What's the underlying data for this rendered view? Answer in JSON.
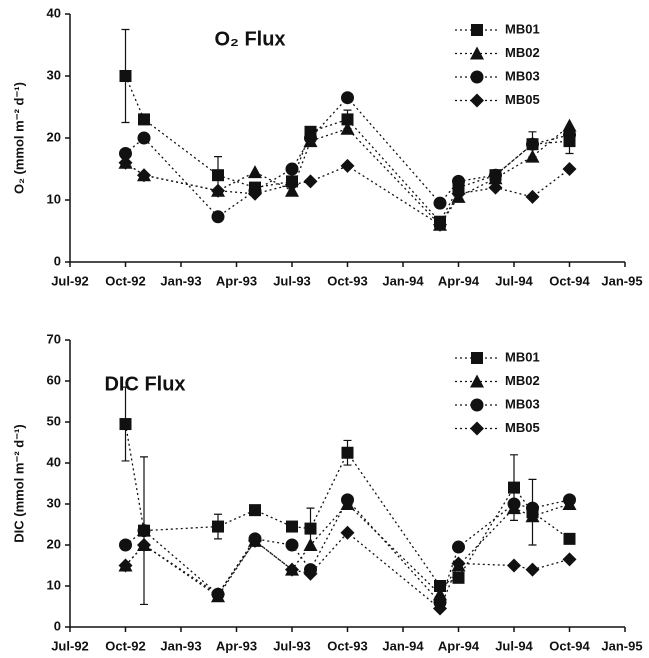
{
  "chart_data": [
    {
      "type": "line",
      "title": "O₂ Flux",
      "y_label": "O₂ (mmol m⁻² d⁻¹)",
      "x": [
        "1992-10",
        "1992-11",
        "1993-03",
        "1993-05",
        "1993-07",
        "1993-08",
        "1993-10",
        "1994-03",
        "1994-04",
        "1994-06",
        "1994-08",
        "1994-10"
      ],
      "xlim": [
        "1992-07",
        "1995-01"
      ],
      "xticks": [
        {
          "value": "1992-07",
          "label": "Jul-92"
        },
        {
          "value": "1992-10",
          "label": "Oct-92"
        },
        {
          "value": "1993-01",
          "label": "Jan-93"
        },
        {
          "value": "1993-04",
          "label": "Apr-93"
        },
        {
          "value": "1993-07",
          "label": "Jul-93"
        },
        {
          "value": "1993-10",
          "label": "Oct-93"
        },
        {
          "value": "1994-01",
          "label": "Jan-94"
        },
        {
          "value": "1994-04",
          "label": "Apr-94"
        },
        {
          "value": "1994-07",
          "label": "Jul-94"
        },
        {
          "value": "1994-10",
          "label": "Oct-94"
        },
        {
          "value": "1995-01",
          "label": "Jan-95"
        }
      ],
      "ylim": [
        0,
        40
      ],
      "yticks": [
        0,
        10,
        20,
        30,
        40
      ],
      "legend": "upper right",
      "series": [
        {
          "name": "MB01",
          "color": "#111111",
          "marker": "square",
          "values": [
            30,
            23,
            14,
            12,
            13,
            21,
            23,
            6.5,
            12,
            14,
            19,
            19.5
          ],
          "errors": [
            7.5,
            null,
            3,
            null,
            null,
            null,
            1.5,
            null,
            null,
            null,
            2,
            2
          ]
        },
        {
          "name": "MB02",
          "color": "#111111",
          "marker": "triangle",
          "values": [
            16,
            14,
            11.5,
            14.5,
            11.5,
            19.5,
            21.5,
            6,
            10.5,
            13.5,
            17,
            22
          ]
        },
        {
          "name": "MB03",
          "color": "#111111",
          "marker": "circle",
          "values": [
            17.5,
            20,
            7.3,
            11.5,
            15,
            20,
            26.5,
            9.5,
            13,
            14,
            19,
            20.5
          ]
        },
        {
          "name": "MB05",
          "color": "#111111",
          "marker": "diamond",
          "values": [
            16,
            14,
            11.5,
            11,
            12.5,
            13,
            15.5,
            6,
            11,
            12,
            10.5,
            15
          ]
        }
      ]
    },
    {
      "type": "line",
      "title": "DIC Flux",
      "y_label": "DIC (mmol m⁻² d⁻¹)",
      "x": [
        "1992-10",
        "1992-11",
        "1993-03",
        "1993-05",
        "1993-07",
        "1993-08",
        "1993-10",
        "1994-03",
        "1994-04",
        "1994-07",
        "1994-08",
        "1994-10"
      ],
      "xlim": [
        "1992-07",
        "1995-01"
      ],
      "xticks": [
        {
          "value": "1992-07",
          "label": "Jul-92"
        },
        {
          "value": "1992-10",
          "label": "Oct-92"
        },
        {
          "value": "1993-01",
          "label": "Jan-93"
        },
        {
          "value": "1993-04",
          "label": "Apr-93"
        },
        {
          "value": "1993-07",
          "label": "Jul-93"
        },
        {
          "value": "1993-10",
          "label": "Oct-93"
        },
        {
          "value": "1994-01",
          "label": "Jan-94"
        },
        {
          "value": "1994-04",
          "label": "Apr-94"
        },
        {
          "value": "1994-07",
          "label": "Jul-94"
        },
        {
          "value": "1994-10",
          "label": "Oct-94"
        },
        {
          "value": "1995-01",
          "label": "Jan-95"
        }
      ],
      "ylim": [
        0,
        70
      ],
      "yticks": [
        0,
        10,
        20,
        30,
        40,
        50,
        60,
        70
      ],
      "legend": "upper right",
      "series": [
        {
          "name": "MB01",
          "color": "#111111",
          "marker": "square",
          "values": [
            49.5,
            23.5,
            24.5,
            28.5,
            24.5,
            24,
            42.5,
            10,
            12,
            34,
            28,
            21.5
          ],
          "errors": [
            9,
            18,
            3,
            null,
            null,
            5,
            3,
            null,
            null,
            8,
            8,
            null
          ]
        },
        {
          "name": "MB02",
          "color": "#111111",
          "marker": "triangle",
          "values": [
            15,
            20,
            7.5,
            21,
            14,
            20,
            30,
            8,
            15,
            29,
            27,
            30
          ]
        },
        {
          "name": "MB03",
          "color": "#111111",
          "marker": "circle",
          "values": [
            20,
            23.5,
            8,
            21.5,
            20,
            14,
            31,
            6,
            19.5,
            30,
            29,
            31
          ]
        },
        {
          "name": "MB05",
          "color": "#111111",
          "marker": "diamond",
          "values": [
            15,
            20,
            8,
            21,
            14,
            13,
            23,
            4.5,
            15.5,
            15,
            14,
            16.5
          ]
        }
      ]
    }
  ]
}
